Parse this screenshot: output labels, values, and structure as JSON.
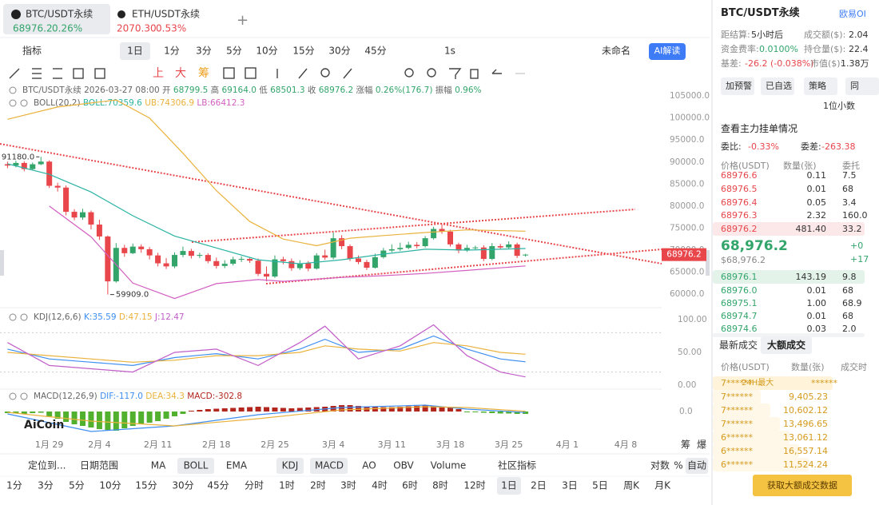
{
  "tabs": [
    {
      "symbol": "BTC/USDT永续",
      "price": "68976.2",
      "change": "0.26%"
    },
    {
      "symbol": "ETH/USDT永续",
      "price": "2070.30",
      "change": "0.53%"
    }
  ],
  "toolbar": {
    "indicator": "指标",
    "period": "1日",
    "intervals": [
      "1分",
      "3分",
      "5分",
      "10分",
      "15分",
      "30分",
      "45分"
    ],
    "replay": "1s",
    "layout": "未命名",
    "ai": "AI解读",
    "tools": [
      "上",
      "大",
      "筹"
    ]
  },
  "chart": {
    "type": "candlestick",
    "info": {
      "symbol": "BTC/USDT永续",
      "time": "2026-03-27 08:00",
      "fields": [
        {
          "label": "开",
          "value": "68799.5"
        },
        {
          "label": "高",
          "value": "69164.0"
        },
        {
          "label": "低",
          "value": "68501.3"
        },
        {
          "label": "收",
          "value": "68976.2"
        },
        {
          "label": "涨幅",
          "value": "0.26%(176.7)"
        },
        {
          "label": "振幅",
          "value": "0.96%"
        }
      ]
    },
    "open": [
      89500,
      89200,
      89800,
      88400,
      89500,
      90100,
      84600,
      84200,
      78700,
      77400,
      78600,
      75800,
      73100,
      62900,
      70500,
      69300,
      70800,
      70200,
      68800,
      67000,
      66300,
      68900,
      69800,
      68700,
      68900,
      67500,
      66400,
      66900,
      67900,
      68000,
      67600,
      64600,
      64000,
      67900,
      67500,
      65900,
      67000,
      65800,
      68800,
      68300,
      72700,
      70900,
      68100,
      67300,
      66000,
      68400,
      69900,
      70200,
      70500,
      71200,
      70900,
      72700,
      74800,
      74200,
      71300,
      69900,
      70500,
      70600,
      68000,
      70900,
      70600,
      71300,
      68799.5
    ],
    "high": [
      90100,
      90300,
      90200,
      89900,
      91180,
      90400,
      85300,
      84700,
      79300,
      79400,
      79000,
      76900,
      73300,
      71600,
      71200,
      71500,
      71300,
      70700,
      69400,
      68200,
      69500,
      70800,
      70300,
      69400,
      69300,
      68300,
      67700,
      68500,
      68600,
      68400,
      68100,
      66300,
      68800,
      68500,
      68100,
      67700,
      67500,
      69300,
      70100,
      74000,
      73400,
      71300,
      68800,
      67800,
      69200,
      70500,
      71300,
      71700,
      71900,
      71800,
      73200,
      75300,
      75900,
      74600,
      71700,
      71200,
      71000,
      71100,
      71600,
      71400,
      72000,
      71700,
      69164.0
    ],
    "low": [
      88600,
      88800,
      87900,
      88100,
      89300,
      84100,
      83300,
      77900,
      76800,
      76900,
      74700,
      72300,
      59909,
      62600,
      68500,
      69100,
      69400,
      67900,
      66300,
      65700,
      65900,
      68400,
      68100,
      68200,
      67000,
      65800,
      65900,
      66500,
      67300,
      67100,
      64100,
      62900,
      63700,
      66800,
      65300,
      65500,
      65200,
      65600,
      67800,
      67900,
      70200,
      67500,
      66800,
      65500,
      65800,
      68100,
      69500,
      69800,
      70200,
      70400,
      70600,
      72400,
      73700,
      70800,
      69300,
      69600,
      70000,
      67500,
      67700,
      70200,
      70300,
      68200,
      68501.3
    ],
    "close": [
      89200,
      89800,
      88400,
      89500,
      90100,
      84600,
      84200,
      78700,
      77400,
      78600,
      75800,
      73100,
      62900,
      70500,
      69300,
      70800,
      70200,
      68800,
      67000,
      66300,
      68900,
      69800,
      68700,
      68900,
      67500,
      66400,
      66900,
      67900,
      68000,
      67600,
      64600,
      64000,
      67900,
      67500,
      65900,
      67000,
      65800,
      68800,
      68300,
      72700,
      70900,
      68100,
      67300,
      66000,
      68400,
      69900,
      70200,
      70500,
      71200,
      70900,
      72700,
      74800,
      74200,
      71300,
      69900,
      70500,
      70600,
      68000,
      70900,
      70600,
      71300,
      68700,
      68976.2
    ],
    "up_color": "#33a56b",
    "down_color": "#e8464b",
    "xlim": [
      -0.9,
      78.3
    ],
    "xticks": [
      {
        "value": 5,
        "label": "1月 29"
      },
      {
        "value": 11,
        "label": "2月 4"
      },
      {
        "value": 18,
        "label": "2月 11"
      },
      {
        "value": 25,
        "label": "2月 18"
      },
      {
        "value": 32,
        "label": "2月 25"
      },
      {
        "value": 39,
        "label": "3月 4"
      },
      {
        "value": 46,
        "label": "3月 11"
      },
      {
        "value": 53,
        "label": "3月 18"
      },
      {
        "value": 60,
        "label": "3月 25"
      },
      {
        "value": 67,
        "label": "4月 1"
      },
      {
        "value": 74,
        "label": "4月 8"
      }
    ],
    "ylim": [
      57300,
      107200
    ],
    "yticks": [
      {
        "value": 105000,
        "label": "105000.0"
      },
      {
        "value": 100000,
        "label": "100000.0"
      },
      {
        "value": 95000,
        "label": "95000.0"
      },
      {
        "value": 90000,
        "label": "90000.0"
      },
      {
        "value": 85000,
        "label": "85000.0"
      },
      {
        "value": 80000,
        "label": "80000.0"
      },
      {
        "value": 75000,
        "label": "75000.0"
      },
      {
        "value": 70000,
        "label": "70000.0"
      },
      {
        "value": 65000,
        "label": "65000.0"
      },
      {
        "value": 60000,
        "label": "60000.0"
      }
    ],
    "annotations": [
      {
        "index": 4,
        "value": 91180,
        "label": "91180.0"
      },
      {
        "index": 12,
        "value": 59909,
        "label": "59909.0"
      }
    ],
    "last_price": 68976.2,
    "boll": {
      "title": "BOLL(20,2)",
      "series": [
        {
          "name": "BOLL:70359.6",
          "color": "#2bb3a3",
          "x": [
            0,
            5,
            10,
            15,
            20,
            25,
            30,
            35,
            40,
            45,
            50,
            55,
            62
          ],
          "values": [
            89600,
            87200,
            83200,
            77800,
            73200,
            70500,
            67800,
            66900,
            67800,
            69100,
            70200,
            70000,
            70359.6
          ]
        },
        {
          "name": "UB:74306.9",
          "color": "#eab23c",
          "x": [
            0,
            6,
            13,
            17,
            21,
            25,
            29,
            33,
            37,
            41,
            45,
            50,
            55,
            62
          ],
          "values": [
            99700,
            102500,
            104100,
            100000,
            92000,
            83500,
            76500,
            72500,
            71000,
            72700,
            73300,
            74000,
            74600,
            74306.9
          ]
        },
        {
          "name": "LB:66412.3",
          "color": "#d35fc1",
          "x": [
            5,
            10,
            15,
            20,
            25,
            30,
            33,
            40,
            45,
            50,
            55,
            62
          ],
          "values": [
            80000,
            73000,
            62500,
            59000,
            62400,
            63300,
            62900,
            63800,
            64200,
            64700,
            65400,
            66412.3
          ]
        }
      ]
    },
    "kdj": {
      "title": "KDJ(12,6,6)",
      "ylim": [
        -3.7,
        114.6
      ],
      "yticks": [
        {
          "value": 100,
          "label": "100.00"
        },
        {
          "value": 50,
          "label": "50.00"
        },
        {
          "value": 0,
          "label": "0.00"
        }
      ],
      "guides": [
        80,
        20
      ],
      "series": [
        {
          "name": "K:35.59",
          "color": "#3d8ef0",
          "x": [
            0,
            5,
            10,
            15,
            20,
            25,
            30,
            35,
            38,
            42,
            47,
            51,
            55,
            59,
            62
          ],
          "values": [
            55,
            40,
            35,
            30,
            42,
            48,
            40,
            55,
            70,
            50,
            55,
            75,
            55,
            40,
            35.59
          ]
        },
        {
          "name": "D:47.15",
          "color": "#eab23c",
          "x": [
            0,
            5,
            10,
            15,
            20,
            25,
            30,
            35,
            38,
            42,
            47,
            51,
            55,
            59,
            62
          ],
          "values": [
            50,
            45,
            40,
            35,
            38,
            45,
            45,
            50,
            60,
            55,
            52,
            65,
            60,
            50,
            47.15
          ]
        },
        {
          "name": "J:12.47",
          "color": "#c05dc8",
          "x": [
            0,
            5,
            10,
            15,
            20,
            25,
            30,
            35,
            38,
            42,
            47,
            51,
            55,
            59,
            62
          ],
          "values": [
            65,
            30,
            25,
            20,
            50,
            55,
            30,
            65,
            90,
            40,
            60,
            92,
            45,
            20,
            12.47
          ]
        }
      ]
    },
    "macd": {
      "title": "MACD(12,26,9)",
      "ylim": [
        -2500,
        2000
      ],
      "yticks": [
        {
          "value": 0,
          "label": "0.0"
        }
      ],
      "up_color": "#b3261e",
      "down_color": "#52b02f",
      "histogram": [
        -200,
        -250,
        -300,
        -200,
        -150,
        -600,
        -900,
        -1300,
        -1600,
        -1800,
        -2000,
        -2200,
        -2300,
        -2400,
        -2100,
        -1800,
        -1600,
        -1400,
        -1200,
        -900,
        -600,
        -300,
        100,
        200,
        300,
        350,
        400,
        450,
        500,
        550,
        600,
        550,
        500,
        450,
        400,
        450,
        500,
        550,
        600,
        700,
        800,
        800,
        700,
        650,
        600,
        550,
        550,
        600,
        650,
        700,
        750,
        700,
        600,
        500,
        300,
        -50,
        -100,
        -150,
        -200,
        -250,
        -250,
        -300,
        -302.8
      ],
      "labels": [
        "DIF:-117.0",
        "DEA:34.3",
        "MACD:-302.8"
      ],
      "series": [
        {
          "name": "DIF",
          "color": "#3d8ef0",
          "x": [
            0,
            10,
            20,
            30,
            40,
            50,
            55,
            62
          ],
          "values": [
            -300,
            -2500,
            -1800,
            -400,
            500,
            800,
            300,
            -117.0
          ]
        },
        {
          "name": "DEA",
          "color": "#eab23c",
          "x": [
            0,
            10,
            20,
            30,
            40,
            50,
            55,
            62
          ],
          "values": [
            -100,
            -1200,
            -1800,
            -900,
            200,
            600,
            500,
            34.3
          ]
        }
      ]
    },
    "logo": "AiCoin",
    "axis_tools": [
      "筹",
      "爆"
    ]
  },
  "bottom_bar": {
    "locate": "定位到...",
    "date_range": "日期范围",
    "indicators": [
      "MA",
      "BOLL",
      "EMA"
    ],
    "sub_indicators": [
      "KDJ",
      "MACD",
      "AO",
      "OBV",
      "Volume"
    ],
    "community": "社区指标",
    "log": "对数",
    "percent": "%",
    "auto": "自动"
  },
  "periods": [
    "1分",
    "3分",
    "5分",
    "10分",
    "15分",
    "30分",
    "45分",
    "分时",
    "1时",
    "2时",
    "3时",
    "4时",
    "6时",
    "8时",
    "12时",
    "1日",
    "2日",
    "3日",
    "5日",
    "周K",
    "月K"
  ],
  "panel": {
    "symbol": "BTC/USDT永续",
    "exchange": "欧易OI",
    "stats": [
      [
        "距结算:",
        "5小时后",
        "成交额($):",
        "2.04"
      ],
      [
        "资金费率:",
        "0.0100%",
        "持仓量($):",
        "22.4"
      ],
      [
        "基差:",
        "-26.2 (-0.038%)",
        "市值($):",
        "1.38万"
      ]
    ],
    "buttons": [
      "加预警",
      "已自选",
      "策略",
      "同"
    ],
    "precision": "1位小数",
    "depth_link": "查看主力挂单情况",
    "ratio": [
      "委比:",
      "-0.33%",
      "委差:",
      "-263.38"
    ],
    "book_headers": [
      "价格(USDT)",
      "数量(张)",
      "委托"
    ],
    "asks": [
      [
        "68976.6",
        "0.11",
        "7.5"
      ],
      [
        "68976.5",
        "0.01",
        "68"
      ],
      [
        "68976.4",
        "0.05",
        "3.4"
      ],
      [
        "68976.3",
        "2.32",
        "160.0"
      ],
      [
        "68976.2",
        "481.40",
        "33.2"
      ]
    ],
    "mid": {
      "price": "68,976.2",
      "usd": "$68,976.2",
      "change": "+0",
      "change_abs": "+17"
    },
    "bids": [
      [
        "68976.1",
        "143.19",
        "9.8"
      ],
      [
        "68976.0",
        "0.01",
        "68"
      ],
      [
        "68975.1",
        "1.00",
        "68.9"
      ],
      [
        "68974.7",
        "0.01",
        "68"
      ],
      [
        "68974.6",
        "0.03",
        "2.0"
      ]
    ],
    "trade_tabs": [
      "最新成交",
      "大额成交"
    ],
    "trade_headers": [
      "价格(USDT)",
      "数量(张)",
      "成交时"
    ],
    "top_trade": {
      "price": "7******",
      "tag": "24H最大",
      "qty": "******"
    },
    "trades": [
      [
        "7******",
        "9,405.23"
      ],
      [
        "7******",
        "10,602.12"
      ],
      [
        "7******",
        "13,496.65"
      ],
      [
        "6******",
        "13,061.12"
      ],
      [
        "6******",
        "16,557.14"
      ],
      [
        "6******",
        "11,524.24"
      ]
    ],
    "fetch": "获取大额成交数据"
  }
}
